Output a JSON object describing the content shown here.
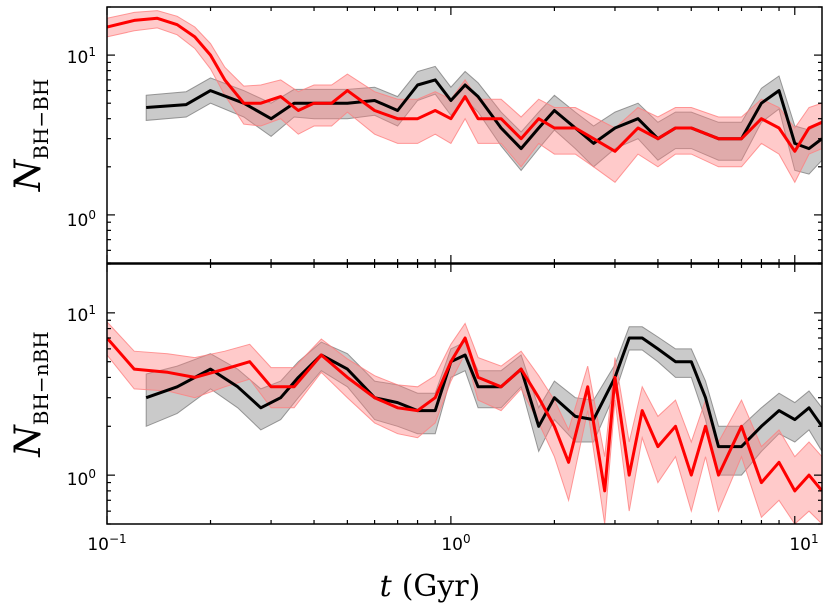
{
  "chart_data": {
    "type": "line",
    "x_axis": {
      "label_var": "t",
      "label_unit": "(Gyr)",
      "scale": "log",
      "xlim": [
        0.1,
        12
      ],
      "ticks": [
        {
          "value": 0.1,
          "base": "10",
          "exp": "−1"
        },
        {
          "value": 1,
          "base": "10",
          "exp": "0"
        },
        {
          "value": 10,
          "base": "10",
          "exp": "1"
        }
      ]
    },
    "panels": [
      {
        "ylabel_var": "N",
        "ylabel_sub": "BH−BH",
        "scale": "log",
        "ylim": [
          0.5,
          20
        ],
        "yticks": [
          {
            "value": 1,
            "base": "10",
            "exp": "0"
          },
          {
            "value": 10,
            "base": "10",
            "exp": "1"
          }
        ],
        "series": [
          {
            "name": "black",
            "color": "#000000",
            "band_color": "#808080",
            "x": [
              0.13,
              0.17,
              0.2,
              0.25,
              0.3,
              0.35,
              0.4,
              0.5,
              0.6,
              0.7,
              0.8,
              0.9,
              1.0,
              1.1,
              1.2,
              1.4,
              1.6,
              1.8,
              2.0,
              2.3,
              2.6,
              3.0,
              3.5,
              4.0,
              4.5,
              5.0,
              6.0,
              7.0,
              8.0,
              9.0,
              10.0,
              11.0,
              12.0
            ],
            "y": [
              4.7,
              4.9,
              6.0,
              5.0,
              4.0,
              5.0,
              5.0,
              5.0,
              5.2,
              4.5,
              6.5,
              7.0,
              5.2,
              6.5,
              5.5,
              3.5,
              2.6,
              3.5,
              4.5,
              3.5,
              2.8,
              3.5,
              4.0,
              3.0,
              3.5,
              3.5,
              3.0,
              3.0,
              5.0,
              6.0,
              2.8,
              2.6,
              3.0
            ],
            "lo": [
              3.9,
              4.1,
              5.0,
              4.1,
              3.1,
              4.1,
              4.0,
              4.0,
              4.2,
              3.6,
              5.2,
              5.7,
              4.2,
              5.3,
              4.4,
              2.7,
              1.9,
              2.6,
              3.4,
              2.6,
              2.0,
              2.6,
              3.0,
              2.2,
              2.6,
              2.6,
              2.2,
              2.2,
              3.8,
              4.6,
              1.9,
              1.8,
              2.2
            ],
            "hi": [
              5.6,
              5.9,
              7.2,
              6.0,
              5.0,
              6.1,
              6.1,
              6.1,
              6.3,
              5.5,
              7.9,
              8.5,
              6.3,
              7.9,
              6.7,
              4.4,
              3.3,
              4.4,
              5.6,
              4.4,
              3.6,
              4.4,
              5.0,
              3.8,
              4.4,
              4.4,
              3.8,
              3.8,
              6.2,
              7.4,
              3.6,
              3.4,
              3.8
            ]
          },
          {
            "name": "red",
            "color": "#ff0000",
            "band_color": "#ff8080",
            "x": [
              0.1,
              0.12,
              0.14,
              0.16,
              0.18,
              0.2,
              0.22,
              0.25,
              0.28,
              0.32,
              0.36,
              0.4,
              0.45,
              0.5,
              0.6,
              0.7,
              0.8,
              0.9,
              1.0,
              1.1,
              1.2,
              1.4,
              1.6,
              1.8,
              2.0,
              2.3,
              2.6,
              3.0,
              3.5,
              4.0,
              4.5,
              5.0,
              6.0,
              7.0,
              8.0,
              9.0,
              10.0,
              11.0,
              12.0
            ],
            "y": [
              15.0,
              16.5,
              17.0,
              15.5,
              13.0,
              10.0,
              7.0,
              5.0,
              5.0,
              5.5,
              4.5,
              5.0,
              5.0,
              6.0,
              4.5,
              4.0,
              4.0,
              4.5,
              4.0,
              5.5,
              4.0,
              4.0,
              3.0,
              4.0,
              3.5,
              3.5,
              3.0,
              2.5,
              3.5,
              3.0,
              3.5,
              3.5,
              3.0,
              3.0,
              4.0,
              3.5,
              2.5,
              3.5,
              3.8
            ],
            "lo": [
              13.0,
              14.2,
              14.8,
              13.4,
              11.0,
              8.2,
              5.6,
              3.7,
              3.6,
              4.0,
              3.2,
              3.6,
              3.6,
              4.4,
              3.2,
              2.8,
              2.8,
              3.2,
              2.8,
              4.0,
              2.8,
              2.8,
              2.0,
              2.8,
              2.4,
              2.4,
              2.0,
              1.6,
              2.4,
              2.0,
              2.4,
              2.4,
              2.0,
              2.0,
              2.8,
              2.4,
              1.6,
              2.4,
              2.6
            ],
            "hi": [
              17.0,
              18.5,
              19.0,
              17.5,
              15.0,
              11.8,
              8.4,
              6.4,
              6.5,
              7.0,
              5.9,
              6.5,
              6.5,
              7.6,
              5.9,
              5.3,
              5.3,
              5.9,
              5.3,
              7.0,
              5.3,
              5.3,
              4.1,
              5.3,
              4.7,
              4.7,
              4.1,
              3.5,
              4.7,
              4.1,
              4.7,
              4.7,
              4.1,
              4.1,
              5.3,
              4.7,
              3.5,
              4.7,
              5.0
            ]
          }
        ]
      },
      {
        "ylabel_var": "N",
        "ylabel_sub": "BH−nBH",
        "scale": "log",
        "ylim": [
          0.5,
          20
        ],
        "yticks": [
          {
            "value": 1,
            "base": "10",
            "exp": "0"
          },
          {
            "value": 10,
            "base": "10",
            "exp": "1"
          }
        ],
        "series": [
          {
            "name": "black",
            "color": "#000000",
            "band_color": "#808080",
            "x": [
              0.13,
              0.16,
              0.2,
              0.24,
              0.28,
              0.32,
              0.36,
              0.42,
              0.5,
              0.6,
              0.7,
              0.8,
              0.9,
              1.0,
              1.1,
              1.2,
              1.4,
              1.6,
              1.8,
              2.0,
              2.3,
              2.6,
              3.0,
              3.3,
              3.6,
              4.0,
              4.5,
              5.0,
              5.5,
              6.0,
              7.0,
              8.0,
              9.0,
              10.0,
              11.0,
              12.0
            ],
            "y": [
              3.0,
              3.5,
              4.5,
              3.5,
              2.6,
              3.0,
              4.0,
              5.5,
              4.5,
              3.0,
              2.8,
              2.5,
              2.5,
              5.0,
              5.5,
              3.5,
              3.5,
              4.5,
              2.0,
              3.0,
              2.3,
              2.2,
              4.0,
              7.0,
              7.0,
              6.0,
              5.0,
              5.0,
              3.0,
              1.5,
              1.5,
              2.0,
              2.5,
              2.2,
              2.6,
              2.0
            ],
            "lo": [
              2.0,
              2.4,
              3.4,
              2.6,
              1.9,
              2.2,
              3.0,
              4.4,
              3.5,
              2.2,
              2.0,
              1.8,
              1.8,
              4.0,
              4.4,
              2.6,
              2.6,
              3.5,
              1.4,
              2.2,
              1.6,
              1.6,
              3.2,
              5.9,
              5.9,
              5.0,
              4.0,
              4.0,
              2.2,
              1.0,
              1.0,
              1.4,
              1.8,
              1.6,
              1.9,
              1.4
            ],
            "hi": [
              4.2,
              4.7,
              5.6,
              4.5,
              3.4,
              3.8,
              5.0,
              6.6,
              5.6,
              3.8,
              3.6,
              3.2,
              3.2,
              6.0,
              6.6,
              4.4,
              4.4,
              5.5,
              2.6,
              3.8,
              3.0,
              2.9,
              4.8,
              8.2,
              8.2,
              7.1,
              6.0,
              6.0,
              3.8,
              2.0,
              2.0,
              2.6,
              3.2,
              2.8,
              3.3,
              2.6
            ]
          },
          {
            "name": "red",
            "color": "#ff0000",
            "band_color": "#ff8080",
            "x": [
              0.1,
              0.12,
              0.15,
              0.18,
              0.22,
              0.26,
              0.3,
              0.35,
              0.42,
              0.5,
              0.6,
              0.7,
              0.8,
              0.9,
              1.0,
              1.1,
              1.2,
              1.4,
              1.6,
              1.8,
              2.0,
              2.2,
              2.5,
              2.8,
              3.0,
              3.3,
              3.6,
              4.0,
              4.5,
              5.0,
              5.5,
              6.0,
              7.0,
              8.0,
              9.0,
              10.0,
              11.0,
              12.0
            ],
            "y": [
              7.0,
              4.5,
              4.3,
              4.0,
              4.5,
              5.0,
              3.5,
              3.5,
              5.5,
              4.0,
              3.0,
              2.6,
              2.5,
              3.0,
              5.0,
              7.0,
              4.0,
              3.5,
              4.5,
              3.0,
              2.0,
              1.2,
              3.5,
              0.8,
              4.0,
              1.0,
              2.5,
              1.5,
              2.0,
              1.0,
              2.0,
              1.0,
              2.0,
              0.9,
              1.2,
              0.8,
              1.0,
              0.8
            ],
            "lo": [
              5.5,
              3.4,
              3.3,
              3.0,
              3.5,
              3.9,
              2.6,
              2.6,
              4.3,
              3.0,
              2.1,
              1.8,
              1.7,
              2.1,
              3.8,
              5.6,
              2.9,
              2.5,
              3.4,
              2.1,
              1.3,
              0.7,
              2.5,
              0.5,
              2.9,
              0.6,
              1.7,
              0.9,
              1.3,
              0.6,
              1.3,
              0.6,
              1.3,
              0.55,
              0.7,
              0.5,
              0.6,
              0.5
            ],
            "hi": [
              8.8,
              5.8,
              5.6,
              5.3,
              5.8,
              6.4,
              4.6,
              4.6,
              6.9,
              5.2,
              4.1,
              3.6,
              3.5,
              4.1,
              6.4,
              8.6,
              5.3,
              4.7,
              5.8,
              4.1,
              2.9,
              1.9,
              4.7,
              1.3,
              5.3,
              1.6,
              3.5,
              2.3,
              2.9,
              1.6,
              2.9,
              1.6,
              2.9,
              1.5,
              1.9,
              1.3,
              1.6,
              1.3
            ]
          }
        ]
      }
    ]
  }
}
